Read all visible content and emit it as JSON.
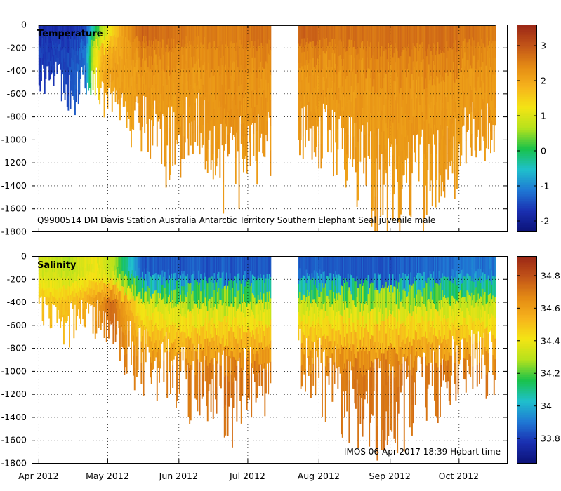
{
  "chart_data": [
    {
      "type": "heatmap",
      "title": "Temperature",
      "annotation": "Q9900514 DM Davis Station Australia Antarctic Territory Southern Elephant Seal juvenile male",
      "ylim": [
        -1800,
        0
      ],
      "yticks": [
        0,
        -200,
        -400,
        -600,
        -800,
        -1000,
        -1200,
        -1400,
        -1600,
        -1800
      ],
      "ytick_labels": [
        "0",
        "-200",
        "-400",
        "-600",
        "-800",
        "-1000",
        "-1200",
        "-1400",
        "-1600",
        "-1800"
      ],
      "colorbar": {
        "min": -2.3,
        "max": 3.6,
        "ticks": [
          -2,
          -1,
          0,
          1,
          2,
          3
        ],
        "tick_labels": [
          "-2",
          "-1",
          "0",
          "1",
          "2",
          "3"
        ]
      },
      "profiles": [
        {
          "day": 0,
          "max_depth": -560,
          "surface": -1.8,
          "deep": -1.6
        },
        {
          "day": 6,
          "max_depth": -500,
          "surface": -1.8,
          "deep": -1.6
        },
        {
          "day": 13,
          "max_depth": -760,
          "surface": -1.8,
          "deep": -1.5
        },
        {
          "day": 20,
          "max_depth": -600,
          "surface": -1.6,
          "deep": -1.2
        },
        {
          "day": 24,
          "max_depth": -650,
          "surface": -0.5,
          "deep": 1.0
        },
        {
          "day": 28,
          "max_depth": -720,
          "surface": 0.5,
          "deep": 2.0
        },
        {
          "day": 36,
          "max_depth": -800,
          "surface": 2.0,
          "deep": 2.1
        },
        {
          "day": 45,
          "max_depth": -1100,
          "surface": 3.0,
          "deep": 2.2
        },
        {
          "day": 56,
          "max_depth": -1250,
          "surface": 2.8,
          "deep": 2.2
        },
        {
          "day": 70,
          "max_depth": -1050,
          "surface": 2.6,
          "deep": 2.2
        },
        {
          "day": 82,
          "max_depth": -1500,
          "surface": 2.6,
          "deep": 2.3
        },
        {
          "day": 113,
          "max_depth": -1100,
          "surface": 3.0,
          "deep": 2.2
        },
        {
          "day": 130,
          "max_depth": -1300,
          "surface": 2.8,
          "deep": 2.2
        },
        {
          "day": 150,
          "max_depth": -1650,
          "surface": 2.8,
          "deep": 2.2
        },
        {
          "day": 170,
          "max_depth": -1600,
          "surface": 2.8,
          "deep": 2.2
        },
        {
          "day": 188,
          "max_depth": -1150,
          "surface": 2.8,
          "deep": 2.2
        },
        {
          "day": 199,
          "max_depth": -1050,
          "surface": 2.6,
          "deep": 2.2
        }
      ]
    },
    {
      "type": "heatmap",
      "title": "Salinity",
      "annotation": "IMOS 06-Apr-2017 18:39 Hobart time",
      "ylim": [
        -1800,
        0
      ],
      "yticks": [
        0,
        -200,
        -400,
        -600,
        -800,
        -1000,
        -1200,
        -1400,
        -1600,
        -1800
      ],
      "ytick_labels": [
        "0",
        "-200",
        "-400",
        "-600",
        "-800",
        "-1000",
        "-1200",
        "-1400",
        "-1600",
        "-1800"
      ],
      "colorbar": {
        "min": 33.65,
        "max": 34.92,
        "ticks": [
          33.8,
          34,
          34.2,
          34.4,
          34.6,
          34.8
        ],
        "tick_labels": [
          "33.8",
          "34",
          "34.2",
          "34.4",
          "34.6",
          "34.8"
        ]
      },
      "profiles": [
        {
          "day": 0,
          "max_depth": -560,
          "surface": 34.35,
          "thermo": 34.5,
          "deep": 34.55
        },
        {
          "day": 13,
          "max_depth": -700,
          "surface": 34.3,
          "thermo": 34.5,
          "deep": 34.55
        },
        {
          "day": 24,
          "max_depth": -650,
          "surface": 34.4,
          "thermo": 34.6,
          "deep": 34.65
        },
        {
          "day": 32,
          "max_depth": -800,
          "surface": 34.3,
          "thermo": 34.75,
          "deep": 34.72
        },
        {
          "day": 45,
          "max_depth": -1100,
          "surface": 33.85,
          "thermo": 34.35,
          "deep": 34.7
        },
        {
          "day": 60,
          "max_depth": -1200,
          "surface": 33.85,
          "thermo": 34.3,
          "deep": 34.7
        },
        {
          "day": 82,
          "max_depth": -1500,
          "surface": 33.85,
          "thermo": 34.3,
          "deep": 34.72
        },
        {
          "day": 113,
          "max_depth": -1100,
          "surface": 33.85,
          "thermo": 34.3,
          "deep": 34.7
        },
        {
          "day": 150,
          "max_depth": -1650,
          "surface": 33.85,
          "thermo": 34.3,
          "deep": 34.72
        },
        {
          "day": 188,
          "max_depth": -1150,
          "surface": 33.9,
          "thermo": 34.3,
          "deep": 34.72
        },
        {
          "day": 199,
          "max_depth": -1050,
          "surface": 33.9,
          "thermo": 34.3,
          "deep": 34.7
        }
      ]
    }
  ],
  "x_axis": {
    "range_days": [
      -3,
      204
    ],
    "ticks": [
      {
        "label": "Apr 2012",
        "day": 0
      },
      {
        "label": "May 2012",
        "day": 30
      },
      {
        "label": "Jun 2012",
        "day": 61
      },
      {
        "label": "Jul 2012",
        "day": 91
      },
      {
        "label": "Aug 2012",
        "day": 122
      },
      {
        "label": "Sep 2012",
        "day": 153
      },
      {
        "label": "Oct 2012",
        "day": 183
      }
    ]
  },
  "data_gap_days": [
    101,
    113
  ],
  "data_end_day": 199,
  "colormap": [
    "#0b1277",
    "#1a2fb0",
    "#1f78d4",
    "#1fc0cc",
    "#19c24a",
    "#b6e21c",
    "#f4e414",
    "#f6b31c",
    "#e48a14",
    "#c25418",
    "#9a2616"
  ]
}
